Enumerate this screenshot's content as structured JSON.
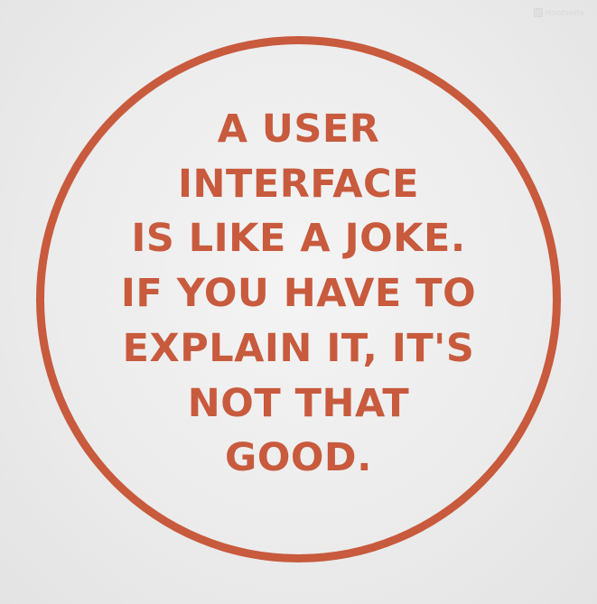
{
  "watermark": {
    "text": "Hootsuite",
    "icon": "owl-logo-icon"
  },
  "quote": {
    "lines": [
      "A USER",
      "INTERFACE",
      "IS LIKE A JOKE.",
      "IF YOU HAVE TO",
      "EXPLAIN IT, IT'S",
      "NOT THAT",
      "GOOD."
    ]
  },
  "colors": {
    "accent": "#c85a3d",
    "background": "#ececec"
  }
}
